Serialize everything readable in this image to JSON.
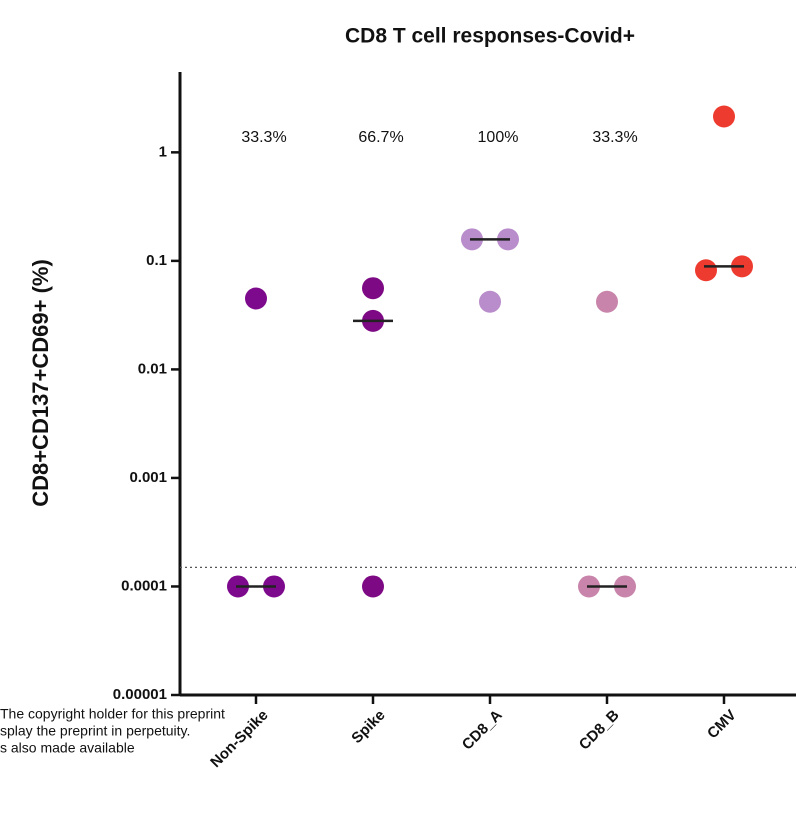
{
  "chart_data": {
    "type": "dot",
    "title": "CD8 T cell responses-Covid+",
    "y_label": "CD8+CD137+CD69+  (%)",
    "categories": [
      "Non-Spike",
      "Spike",
      "CD8_A",
      "CD8_B",
      "CMV"
    ],
    "colors": [
      "#7d0a8c",
      "#7d0a84",
      "#b98ccb",
      "#c884aa",
      "#ee3b30"
    ],
    "points": [
      [
        0.045,
        0.0001,
        0.0001
      ],
      [
        0.056,
        0.028,
        0.0001
      ],
      [
        0.158,
        0.158,
        0.042
      ],
      [
        0.042,
        0.0001,
        0.0001
      ],
      [
        2.14,
        0.082,
        0.089
      ]
    ],
    "medians": [
      0.0001,
      0.028,
      0.158,
      0.0001,
      0.089
    ],
    "annotations": [
      "33.3%",
      "66.7%",
      "100%",
      "33.3%",
      null
    ],
    "threshold": 0.00015,
    "log_scale": true,
    "ylim": [
      1e-05,
      5.5
    ],
    "yticks": [
      1e-05,
      0.0001,
      0.001,
      0.01,
      0.1,
      1
    ],
    "overlay_text": [
      "The copyright holder for this preprint",
      "splay the preprint in perpetuity.",
      "s also made available"
    ]
  }
}
